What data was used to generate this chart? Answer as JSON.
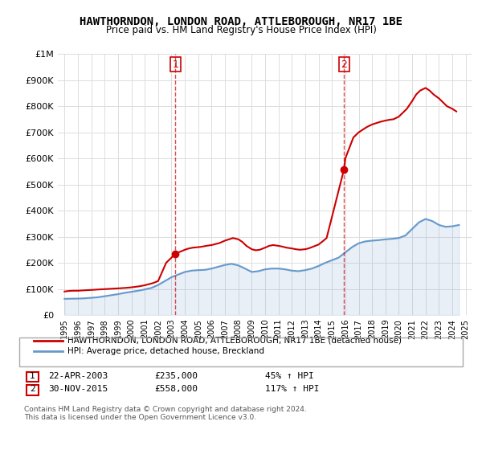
{
  "title": "HAWTHORNDON, LONDON ROAD, ATTLEBOROUGH, NR17 1BE",
  "subtitle": "Price paid vs. HM Land Registry's House Price Index (HPI)",
  "legend_line1": "HAWTHORNDON, LONDON ROAD, ATTLEBOROUGH, NR17 1BE (detached house)",
  "legend_line2": "HPI: Average price, detached house, Breckland",
  "footer_line1": "Contains HM Land Registry data © Crown copyright and database right 2024.",
  "footer_line2": "This data is licensed under the Open Government Licence v3.0.",
  "transaction1_label": "1",
  "transaction1_date": "22-APR-2003",
  "transaction1_price": "£235,000",
  "transaction1_hpi": "45% ↑ HPI",
  "transaction2_label": "2",
  "transaction2_date": "30-NOV-2015",
  "transaction2_price": "£558,000",
  "transaction2_hpi": "117% ↑ HPI",
  "property_color": "#cc0000",
  "hpi_color": "#6699cc",
  "vline_color": "#cc0000",
  "background_color": "#ffffff",
  "ylim": [
    0,
    1000000
  ],
  "yticks": [
    0,
    100000,
    200000,
    300000,
    400000,
    500000,
    600000,
    700000,
    800000,
    900000,
    1000000
  ],
  "ytick_labels": [
    "£0",
    "£100K",
    "£200K",
    "£300K",
    "£400K",
    "£500K",
    "£600K",
    "£700K",
    "£800K",
    "£900K",
    "£1M"
  ],
  "hpi_data": {
    "years": [
      1995,
      1995.5,
      1996,
      1996.5,
      1997,
      1997.5,
      1998,
      1998.5,
      1999,
      1999.5,
      2000,
      2000.5,
      2001,
      2001.5,
      2002,
      2002.5,
      2003,
      2003.5,
      2004,
      2004.5,
      2005,
      2005.5,
      2006,
      2006.5,
      2007,
      2007.5,
      2008,
      2008.5,
      2009,
      2009.5,
      2010,
      2010.5,
      2011,
      2011.5,
      2012,
      2012.5,
      2013,
      2013.5,
      2014,
      2014.5,
      2015,
      2015.5,
      2016,
      2016.5,
      2017,
      2017.5,
      2018,
      2018.5,
      2019,
      2019.5,
      2020,
      2020.5,
      2021,
      2021.5,
      2022,
      2022.5,
      2023,
      2023.5,
      2024,
      2024.5
    ],
    "values": [
      62000,
      62500,
      63000,
      64000,
      66000,
      68000,
      72000,
      76000,
      80000,
      85000,
      89000,
      93000,
      98000,
      104000,
      115000,
      130000,
      145000,
      155000,
      165000,
      170000,
      172000,
      173000,
      178000,
      185000,
      192000,
      196000,
      190000,
      178000,
      165000,
      168000,
      175000,
      178000,
      178000,
      175000,
      170000,
      168000,
      172000,
      178000,
      188000,
      200000,
      210000,
      220000,
      240000,
      260000,
      275000,
      282000,
      285000,
      287000,
      290000,
      292000,
      295000,
      305000,
      330000,
      355000,
      368000,
      360000,
      345000,
      338000,
      340000,
      345000
    ]
  },
  "property_data": {
    "years": [
      1995,
      1995.3,
      1995.6,
      1996,
      1996.3,
      1996.6,
      1997,
      1997.3,
      1997.6,
      1998,
      1998.3,
      1998.6,
      1999,
      1999.3,
      1999.6,
      2000,
      2000.3,
      2000.6,
      2001,
      2001.3,
      2001.6,
      2002,
      2002.3,
      2002.6,
      2003.3,
      2004,
      2004.3,
      2004.6,
      2005,
      2005.3,
      2005.6,
      2006,
      2006.3,
      2006.6,
      2007,
      2007.3,
      2007.6,
      2008,
      2008.3,
      2008.6,
      2009,
      2009.3,
      2009.6,
      2010,
      2010.3,
      2010.6,
      2011,
      2011.3,
      2011.6,
      2012,
      2012.3,
      2012.6,
      2013,
      2013.3,
      2013.6,
      2014,
      2014.3,
      2014.6,
      2015.9,
      2016,
      2016.3,
      2016.6,
      2017,
      2017.3,
      2017.6,
      2018,
      2018.3,
      2018.6,
      2019,
      2019.3,
      2019.6,
      2020,
      2020.3,
      2020.6,
      2021,
      2021.3,
      2021.6,
      2022,
      2022.3,
      2022.6,
      2023,
      2023.3,
      2023.6,
      2024,
      2024.3
    ],
    "values": [
      90000,
      92000,
      93000,
      93000,
      94000,
      95000,
      96000,
      97000,
      98000,
      99000,
      100000,
      101000,
      102000,
      103000,
      104000,
      106000,
      108000,
      110000,
      114000,
      118000,
      122000,
      130000,
      165000,
      200000,
      235000,
      250000,
      255000,
      258000,
      260000,
      262000,
      265000,
      268000,
      272000,
      276000,
      285000,
      290000,
      295000,
      290000,
      280000,
      265000,
      252000,
      248000,
      250000,
      258000,
      265000,
      268000,
      265000,
      262000,
      258000,
      255000,
      252000,
      250000,
      252000,
      256000,
      262000,
      270000,
      282000,
      295000,
      558000,
      600000,
      640000,
      680000,
      700000,
      710000,
      720000,
      730000,
      735000,
      740000,
      745000,
      748000,
      750000,
      760000,
      775000,
      790000,
      820000,
      845000,
      860000,
      870000,
      860000,
      845000,
      830000,
      815000,
      800000,
      790000,
      780000
    ]
  },
  "vline1_x": 2003.3,
  "vline2_x": 2015.9,
  "marker1_x": 2003.3,
  "marker1_y": 235000,
  "marker2_x": 2015.9,
  "marker2_y": 558000,
  "xmin": 1994.5,
  "xmax": 2025.5,
  "xticks": [
    1995,
    1996,
    1997,
    1998,
    1999,
    2000,
    2001,
    2002,
    2003,
    2004,
    2005,
    2006,
    2007,
    2008,
    2009,
    2010,
    2011,
    2012,
    2013,
    2014,
    2015,
    2016,
    2017,
    2018,
    2019,
    2020,
    2021,
    2022,
    2023,
    2024,
    2025
  ]
}
